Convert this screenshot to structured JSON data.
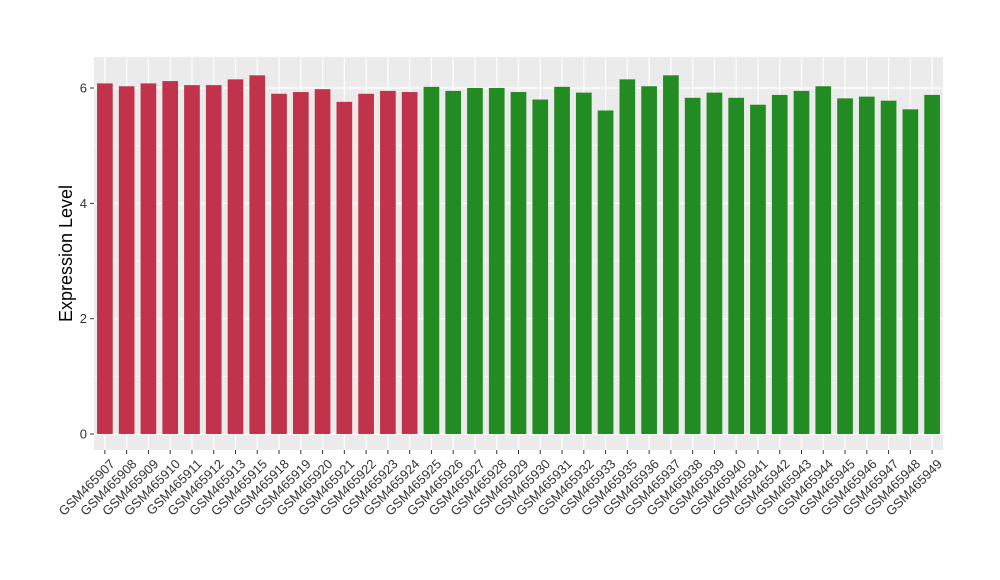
{
  "chart_data": {
    "type": "bar",
    "title": "",
    "xlabel": "",
    "ylabel": "Expression Level",
    "ylim": [
      0,
      6.5
    ],
    "yticks": [
      0,
      2,
      4,
      6
    ],
    "grid": true,
    "background": "#EBEBEB",
    "gridline_color": "#FFFFFF",
    "group_colors": [
      "#C1334A",
      "#228B22"
    ],
    "categories": [
      "GSM465907",
      "GSM465908",
      "GSM465909",
      "GSM465910",
      "GSM465911",
      "GSM465912",
      "GSM465913",
      "GSM465915",
      "GSM465918",
      "GSM465919",
      "GSM465920",
      "GSM465921",
      "GSM465922",
      "GSM465923",
      "GSM465924",
      "GSM465925",
      "GSM465926",
      "GSM465927",
      "GSM465928",
      "GSM465929",
      "GSM465930",
      "GSM465931",
      "GSM465932",
      "GSM465933",
      "GSM465935",
      "GSM465936",
      "GSM465937",
      "GSM465938",
      "GSM465939",
      "GSM465940",
      "GSM465941",
      "GSM465942",
      "GSM465943",
      "GSM465944",
      "GSM465945",
      "GSM465946",
      "GSM465947",
      "GSM465948",
      "GSM465949"
    ],
    "values": [
      6.08,
      6.03,
      6.08,
      6.12,
      6.05,
      6.05,
      6.15,
      6.22,
      5.9,
      5.93,
      5.98,
      5.76,
      5.9,
      5.95,
      5.93,
      6.02,
      5.95,
      6.0,
      6.0,
      5.93,
      5.8,
      6.02,
      5.92,
      5.61,
      6.15,
      6.03,
      6.22,
      5.83,
      5.92,
      5.83,
      5.71,
      5.88,
      5.95,
      6.03,
      5.82,
      5.85,
      5.78,
      5.63,
      5.88
    ],
    "group": [
      0,
      0,
      0,
      0,
      0,
      0,
      0,
      0,
      0,
      0,
      0,
      0,
      0,
      0,
      0,
      1,
      1,
      1,
      1,
      1,
      1,
      1,
      1,
      1,
      1,
      1,
      1,
      1,
      1,
      1,
      1,
      1,
      1,
      1,
      1,
      1,
      1,
      1,
      1
    ]
  }
}
